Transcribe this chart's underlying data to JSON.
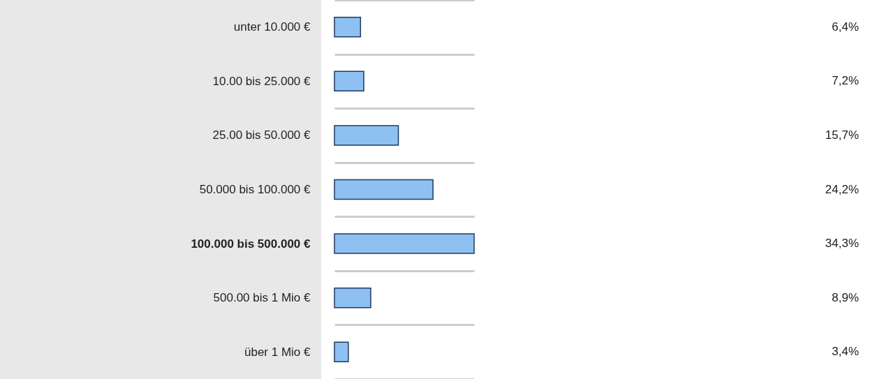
{
  "chart_data": {
    "type": "bar",
    "orientation": "horizontal",
    "categories": [
      "unter 10.000 €",
      "10.00 bis 25.000 €",
      "25.00 bis 50.000 €",
      "50.000 bis 100.000 €",
      "100.000 bis 500.000 €",
      "500.00 bis 1 Mio €",
      "über 1 Mio €"
    ],
    "values": [
      6.4,
      7.2,
      15.7,
      24.2,
      34.3,
      8.9,
      3.4
    ],
    "value_labels": [
      "6,4%",
      "7,2%",
      "15,7%",
      "24,2%",
      "34,3%",
      "8,9%",
      "3,4%"
    ],
    "color": "#8ec0f2",
    "grid": "y"
  }
}
